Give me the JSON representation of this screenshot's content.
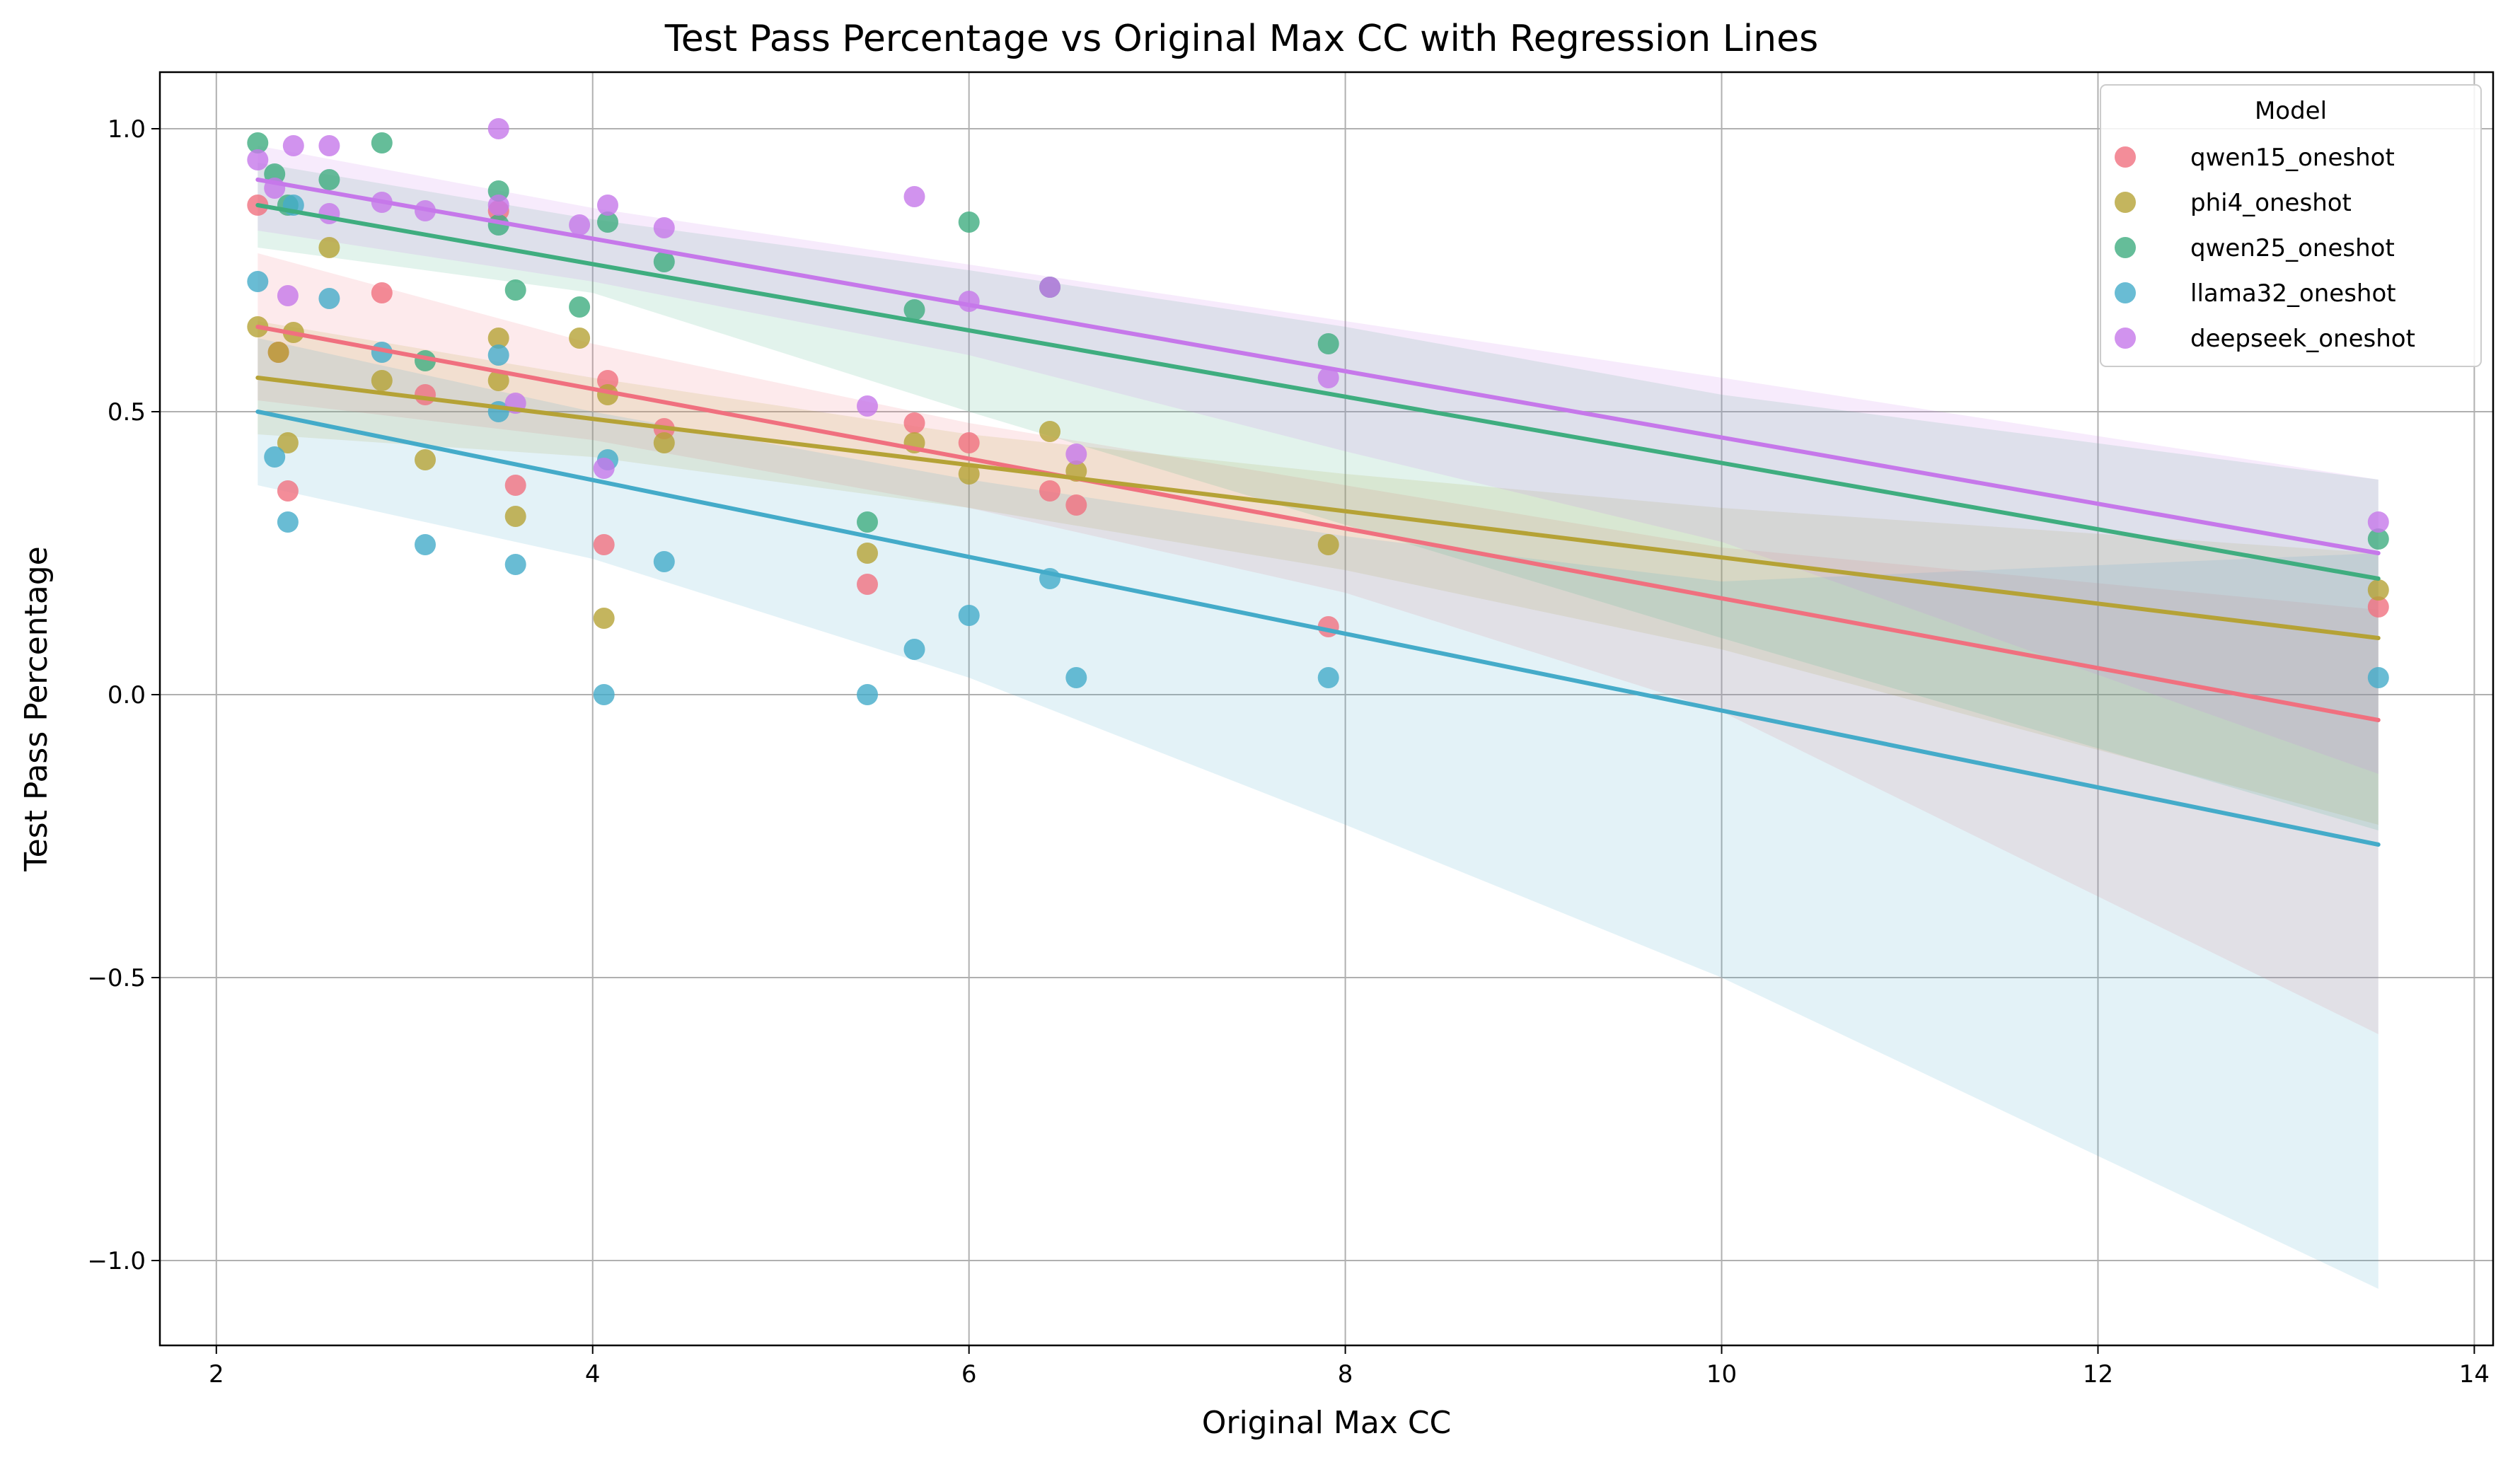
{
  "chart_data": {
    "type": "scatter",
    "title": "Test Pass Percentage vs Original Max CC with Regression Lines",
    "xlabel": "Original Max CC",
    "ylabel": "Test Pass Percentage",
    "xlim": [
      1.7,
      14.1
    ],
    "ylim": [
      -1.15,
      1.1
    ],
    "xticks": [
      2,
      4,
      6,
      8,
      10,
      12,
      14
    ],
    "yticks": [
      -1.0,
      -0.5,
      0.0,
      0.5,
      1.0
    ],
    "grid": true,
    "legend": {
      "title": "Model",
      "position": "top-right"
    },
    "series": [
      {
        "name": "qwen15_oneshot",
        "color": "#f0707f",
        "points": [
          [
            2.22,
            0.865
          ],
          [
            2.33,
            0.605
          ],
          [
            2.38,
            0.36
          ],
          [
            2.88,
            0.71
          ],
          [
            3.11,
            0.53
          ],
          [
            3.5,
            0.855
          ],
          [
            3.59,
            0.37
          ],
          [
            4.06,
            0.265
          ],
          [
            4.08,
            0.555
          ],
          [
            4.38,
            0.47
          ],
          [
            5.46,
            0.195
          ],
          [
            5.71,
            0.48
          ],
          [
            6.0,
            0.445
          ],
          [
            6.43,
            0.36
          ],
          [
            6.57,
            0.335
          ],
          [
            7.91,
            0.12
          ],
          [
            13.49,
            0.155
          ]
        ],
        "regression": {
          "x": [
            2.22,
            13.49
          ],
          "y": [
            0.65,
            -0.045
          ]
        },
        "band": {
          "x": [
            2.22,
            4.0,
            6.0,
            8.0,
            10.0,
            13.49
          ],
          "upper": [
            0.78,
            0.62,
            0.48,
            0.37,
            0.26,
            0.15
          ],
          "lower": [
            0.52,
            0.45,
            0.33,
            0.18,
            -0.03,
            -0.6
          ]
        }
      },
      {
        "name": "phi4_oneshot",
        "color": "#b5a236",
        "points": [
          [
            2.22,
            0.65
          ],
          [
            2.33,
            0.605
          ],
          [
            2.38,
            0.445
          ],
          [
            2.41,
            0.64
          ],
          [
            2.6,
            0.79
          ],
          [
            2.88,
            0.555
          ],
          [
            3.11,
            0.415
          ],
          [
            3.5,
            0.555
          ],
          [
            3.5,
            0.63
          ],
          [
            3.59,
            0.315
          ],
          [
            3.93,
            0.63
          ],
          [
            4.06,
            0.135
          ],
          [
            4.08,
            0.53
          ],
          [
            4.38,
            0.445
          ],
          [
            5.46,
            0.25
          ],
          [
            5.71,
            0.445
          ],
          [
            6.0,
            0.39
          ],
          [
            6.43,
            0.465
          ],
          [
            6.57,
            0.395
          ],
          [
            7.91,
            0.265
          ],
          [
            13.49,
            0.185
          ]
        ],
        "regression": {
          "x": [
            2.22,
            13.49
          ],
          "y": [
            0.56,
            0.1
          ]
        },
        "band": {
          "x": [
            2.22,
            4.0,
            6.0,
            8.0,
            10.0,
            13.49
          ],
          "upper": [
            0.66,
            0.56,
            0.46,
            0.39,
            0.33,
            0.25
          ],
          "lower": [
            0.46,
            0.42,
            0.33,
            0.22,
            0.08,
            -0.23
          ]
        }
      },
      {
        "name": "qwen25_oneshot",
        "color": "#3fad7f",
        "points": [
          [
            2.22,
            0.975
          ],
          [
            2.31,
            0.92
          ],
          [
            2.38,
            0.865
          ],
          [
            2.6,
            0.91
          ],
          [
            2.88,
            0.975
          ],
          [
            3.11,
            0.59
          ],
          [
            3.5,
            0.89
          ],
          [
            3.5,
            0.83
          ],
          [
            3.59,
            0.715
          ],
          [
            3.93,
            0.685
          ],
          [
            4.08,
            0.835
          ],
          [
            4.38,
            0.765
          ],
          [
            5.46,
            0.305
          ],
          [
            5.71,
            0.68
          ],
          [
            6.0,
            0.835
          ],
          [
            6.43,
            0.72
          ],
          [
            7.91,
            0.62
          ],
          [
            13.49,
            0.275
          ]
        ],
        "regression": {
          "x": [
            2.22,
            13.49
          ],
          "y": [
            0.865,
            0.205
          ]
        },
        "band": {
          "x": [
            2.22,
            4.0,
            6.0,
            8.0,
            10.0,
            13.49
          ],
          "upper": [
            0.94,
            0.84,
            0.75,
            0.65,
            0.53,
            0.38
          ],
          "lower": [
            0.79,
            0.71,
            0.5,
            0.3,
            0.1,
            -0.24
          ]
        }
      },
      {
        "name": "llama32_oneshot",
        "color": "#44abc9",
        "points": [
          [
            2.22,
            0.73
          ],
          [
            2.31,
            0.42
          ],
          [
            2.38,
            0.305
          ],
          [
            2.41,
            0.865
          ],
          [
            2.6,
            0.7
          ],
          [
            2.88,
            0.605
          ],
          [
            3.11,
            0.265
          ],
          [
            3.5,
            0.5
          ],
          [
            3.5,
            0.6
          ],
          [
            3.59,
            0.23
          ],
          [
            4.06,
            0.0
          ],
          [
            4.08,
            0.415
          ],
          [
            4.38,
            0.235
          ],
          [
            5.46,
            0.0
          ],
          [
            5.71,
            0.08
          ],
          [
            6.0,
            0.14
          ],
          [
            6.43,
            0.205
          ],
          [
            6.57,
            0.03
          ],
          [
            7.91,
            0.03
          ],
          [
            13.49,
            0.03
          ]
        ],
        "regression": {
          "x": [
            2.22,
            13.49
          ],
          "y": [
            0.5,
            -0.265
          ]
        },
        "band": {
          "x": [
            2.22,
            4.0,
            6.0,
            8.0,
            10.0,
            13.49
          ],
          "upper": [
            0.63,
            0.5,
            0.38,
            0.28,
            0.2,
            0.25
          ],
          "lower": [
            0.37,
            0.24,
            0.03,
            -0.23,
            -0.5,
            -1.05
          ]
        }
      },
      {
        "name": "deepseek_oneshot",
        "color": "#c678ea",
        "points": [
          [
            2.22,
            0.945
          ],
          [
            2.31,
            0.895
          ],
          [
            2.38,
            0.705
          ],
          [
            2.41,
            0.97
          ],
          [
            2.6,
            0.97
          ],
          [
            2.6,
            0.85
          ],
          [
            2.88,
            0.87
          ],
          [
            3.11,
            0.855
          ],
          [
            3.5,
            0.865
          ],
          [
            3.5,
            1.0
          ],
          [
            3.59,
            0.515
          ],
          [
            3.93,
            0.83
          ],
          [
            4.06,
            0.4
          ],
          [
            4.08,
            0.865
          ],
          [
            4.38,
            0.825
          ],
          [
            5.46,
            0.51
          ],
          [
            5.71,
            0.88
          ],
          [
            6.0,
            0.695
          ],
          [
            6.43,
            0.72
          ],
          [
            6.57,
            0.425
          ],
          [
            7.91,
            0.56
          ],
          [
            13.49,
            0.305
          ]
        ],
        "regression": {
          "x": [
            2.22,
            13.49
          ],
          "y": [
            0.91,
            0.25
          ]
        },
        "band": {
          "x": [
            2.22,
            4.0,
            6.0,
            8.0,
            10.0,
            13.49
          ],
          "upper": [
            0.97,
            0.86,
            0.76,
            0.66,
            0.56,
            0.38
          ],
          "lower": [
            0.82,
            0.73,
            0.6,
            0.43,
            0.27,
            -0.14
          ]
        }
      }
    ]
  }
}
